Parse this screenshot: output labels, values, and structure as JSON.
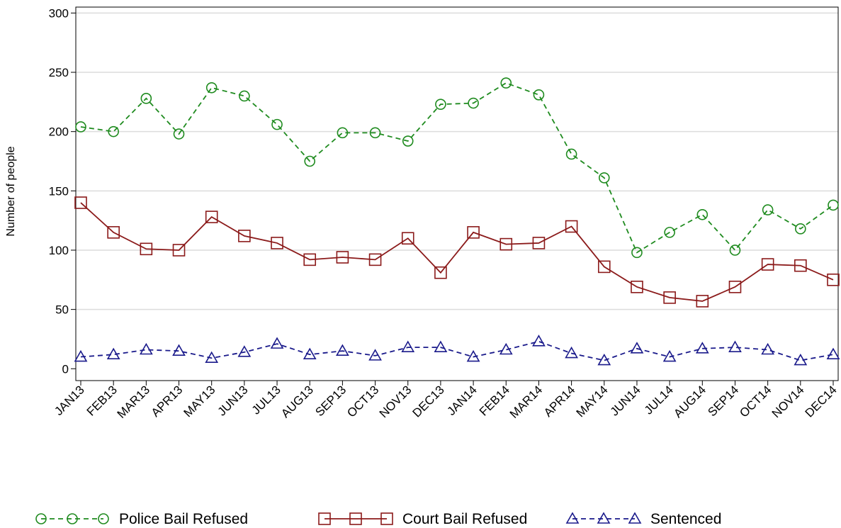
{
  "chart_data": {
    "type": "line",
    "y_label": "Number of people",
    "categories": [
      "JAN13",
      "FEB13",
      "MAR13",
      "APR13",
      "MAY13",
      "JUN13",
      "JUL13",
      "AUG13",
      "SEP13",
      "OCT13",
      "NOV13",
      "DEC13",
      "JAN14",
      "FEB14",
      "MAR14",
      "APR14",
      "MAY14",
      "JUN14",
      "JUL14",
      "AUG14",
      "SEP14",
      "OCT14",
      "NOV14",
      "DEC14"
    ],
    "series": [
      {
        "name": "Police Bail Refused",
        "color": "#1f8b1f",
        "marker": "circle",
        "dashed": true,
        "values": [
          204,
          200,
          228,
          198,
          237,
          230,
          206,
          175,
          199,
          199,
          192,
          223,
          224,
          241,
          231,
          181,
          161,
          98,
          115,
          130,
          100,
          134,
          118,
          138
        ]
      },
      {
        "name": "Court Bail Refused",
        "color": "#8b1a1a",
        "marker": "square",
        "dashed": false,
        "values": [
          140,
          115,
          101,
          100,
          128,
          112,
          106,
          92,
          94,
          92,
          110,
          81,
          115,
          105,
          106,
          120,
          86,
          69,
          60,
          57,
          69,
          88,
          87,
          75
        ]
      },
      {
        "name": "Sentenced",
        "color": "#1a1a8b",
        "marker": "triangle",
        "dashed": true,
        "values": [
          10,
          12,
          16,
          15,
          9,
          14,
          21,
          12,
          15,
          11,
          18,
          18,
          10,
          16,
          23,
          13,
          7,
          17,
          10,
          17,
          18,
          16,
          7,
          12
        ]
      }
    ],
    "ylim": [
      -10,
      305
    ],
    "yticks": [
      0,
      50,
      100,
      150,
      200,
      250,
      300
    ],
    "grid": true,
    "legend": "bottom"
  }
}
